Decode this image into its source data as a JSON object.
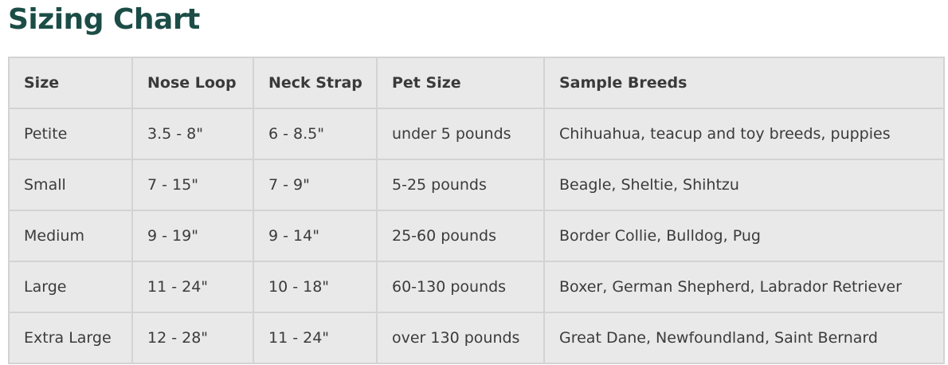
{
  "title": "Sizing Chart",
  "table": {
    "headers": [
      "Size",
      "Nose Loop",
      "Neck Strap",
      "Pet Size",
      "Sample Breeds"
    ],
    "rows": [
      [
        "Petite",
        "3.5 - 8\"",
        "6 - 8.5\"",
        "under 5 pounds",
        "Chihuahua, teacup and toy breeds, puppies"
      ],
      [
        "Small",
        "7 - 15\"",
        "7 - 9\"",
        "5-25 pounds",
        "Beagle, Sheltie, Shihtzu"
      ],
      [
        "Medium",
        "9 - 19\"",
        "9 - 14\"",
        "25-60 pounds",
        "Border Collie, Bulldog, Pug"
      ],
      [
        "Large",
        "11 - 24\"",
        "10 - 18\"",
        "60-130 pounds",
        "Boxer, German Shepherd, Labrador Retriever"
      ],
      [
        "Extra Large",
        "12 - 28\"",
        "11 - 24\"",
        "over 130 pounds",
        "Great Dane, Newfoundland, Saint Bernard"
      ]
    ]
  },
  "colors": {
    "title": "#1b4d46",
    "table_bg": "#e9e9e9",
    "border": "#d3d3d3",
    "text": "#3b3b3b"
  }
}
